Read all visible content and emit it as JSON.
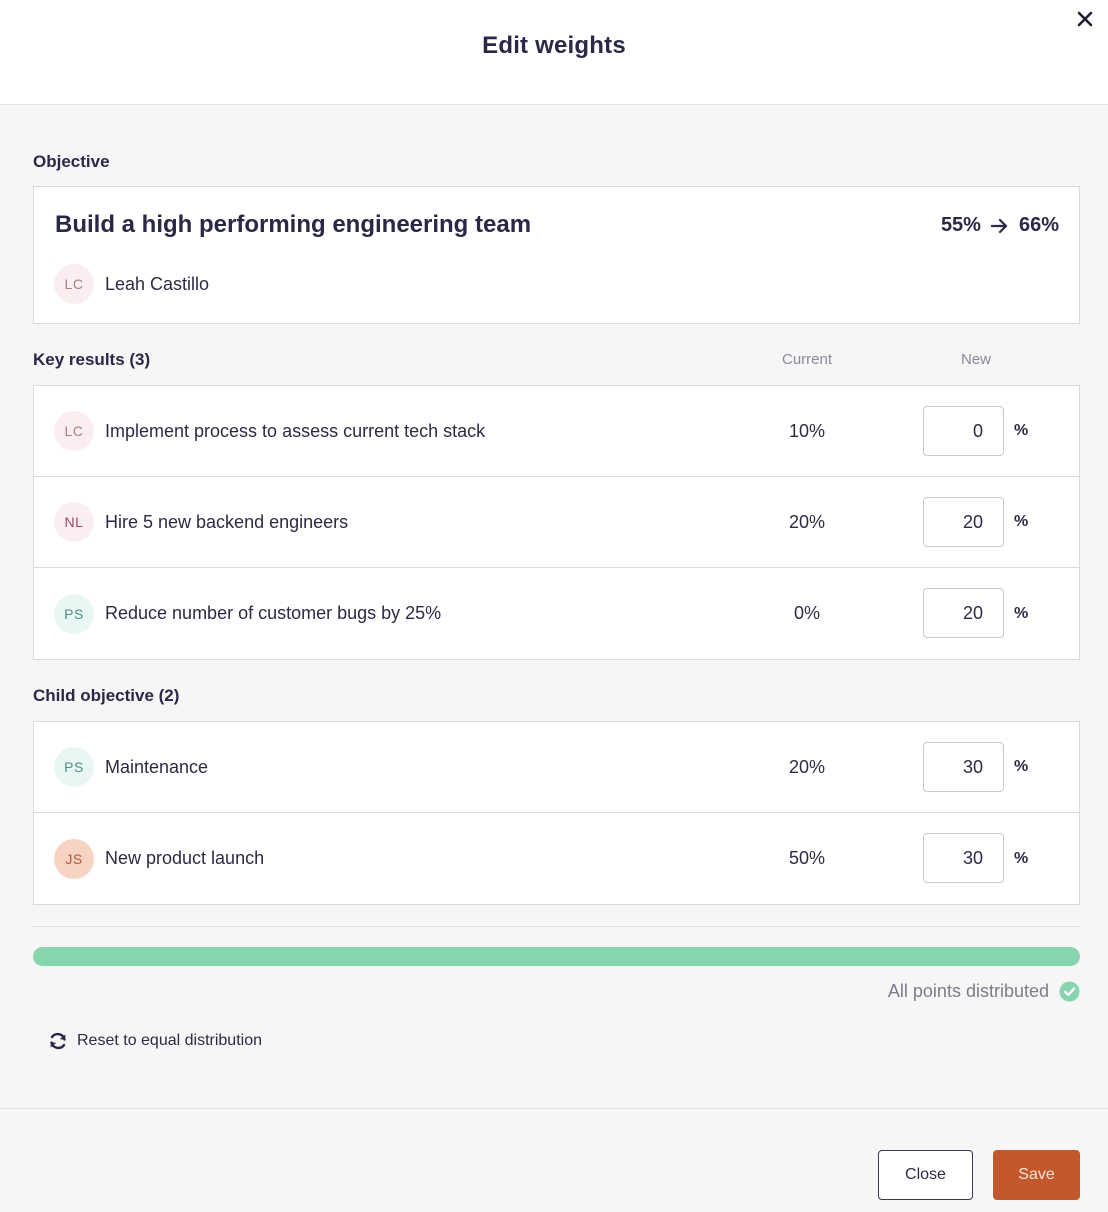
{
  "modal": {
    "title": "Edit weights"
  },
  "objective": {
    "section_label": "Objective",
    "title": "Build a high performing engineering team",
    "from": "55%",
    "to": "66%",
    "owner_initials": "LC",
    "owner_name": "Leah Castillo"
  },
  "key_results": {
    "section_label": "Key results (3)",
    "col_current": "Current",
    "col_new": "New",
    "items": [
      {
        "initials": "LC",
        "label": "Implement process to assess current tech stack",
        "current": "10%",
        "new": "0",
        "unit": "%"
      },
      {
        "initials": "NL",
        "label": "Hire 5 new backend engineers",
        "current": "20%",
        "new": "20",
        "unit": "%"
      },
      {
        "initials": "PS",
        "label": "Reduce number of customer bugs by 25%",
        "current": "0%",
        "new": "20",
        "unit": "%"
      }
    ]
  },
  "child_objectives": {
    "section_label": "Child objective (2)",
    "items": [
      {
        "initials": "PS",
        "label": "Maintenance",
        "current": "20%",
        "new": "30",
        "unit": "%"
      },
      {
        "initials": "JS",
        "label": "New product launch",
        "current": "50%",
        "new": "30",
        "unit": "%"
      }
    ]
  },
  "progress": {
    "fraction": 1.0,
    "status_text": "All points distributed",
    "color": "#86d5ac"
  },
  "reset": {
    "label": "Reset to equal distribution"
  },
  "footer": {
    "close_label": "Close",
    "save_label": "Save",
    "save_color": "#c4582d"
  }
}
